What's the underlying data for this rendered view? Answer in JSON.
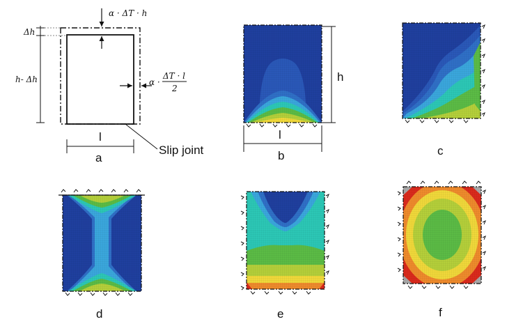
{
  "panel_a": {
    "dh": "Δh",
    "h_minus_dh": "h- Δh",
    "top_load": "α · ΔT · h",
    "side_load_prefix": "α ·",
    "side_load_num": "ΔT · l",
    "side_load_den": "2",
    "width_label": "l",
    "slip_joint": "Slip joint",
    "caption": "a"
  },
  "panel_b": {
    "height_label": "h",
    "width_label": "l",
    "caption": "b"
  },
  "panel_c": {
    "caption": "c"
  },
  "panel_d": {
    "caption": "d"
  },
  "panel_e": {
    "caption": "e"
  },
  "panel_f": {
    "caption": "f"
  },
  "colors": {
    "dark_blue": "#1f3f9e",
    "mid_blue": "#2f6fc6",
    "light_blue": "#3aa6dc",
    "cyan": "#2cc7b5",
    "green": "#5bbb45",
    "yellow_green": "#b4cf3a",
    "yellow": "#f0d83a",
    "orange": "#ee8a2c",
    "red": "#d92a1c",
    "gray": "#a8a8a8"
  }
}
